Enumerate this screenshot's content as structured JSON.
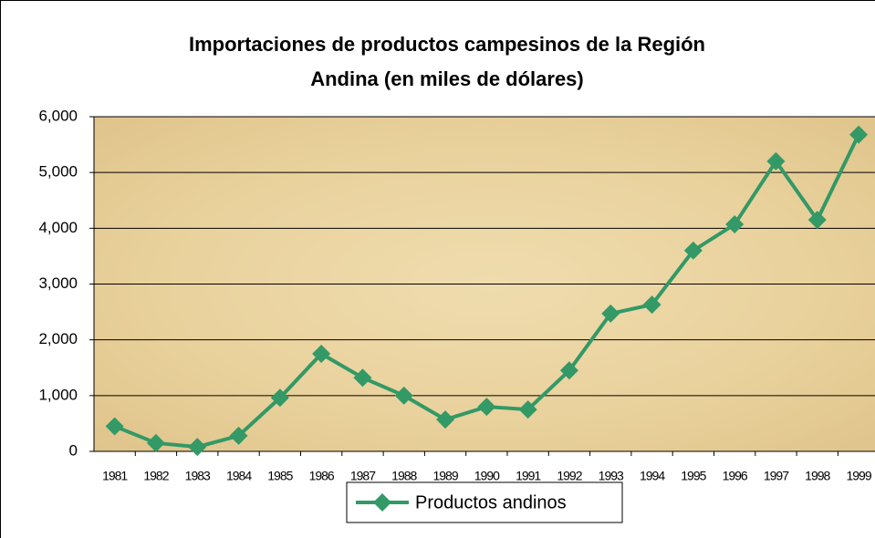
{
  "chart_data": {
    "type": "line",
    "title": [
      "Importaciones de productos campesinos de la Región",
      "Andina  (en miles de dólares)"
    ],
    "categories": [
      "1981",
      "1982",
      "1983",
      "1984",
      "1985",
      "1986",
      "1987",
      "1988",
      "1989",
      "1990",
      "1991",
      "1992",
      "1993",
      "1994",
      "1995",
      "1996",
      "1997",
      "1998",
      "1999"
    ],
    "series": [
      {
        "name": "Productos andinos",
        "color": "#339966",
        "values": [
          450,
          150,
          80,
          280,
          960,
          1750,
          1320,
          1000,
          570,
          800,
          750,
          1450,
          2470,
          2630,
          3600,
          4070,
          5200,
          4150,
          5680
        ]
      }
    ],
    "ylim": [
      0,
      6000
    ],
    "yticks": [
      0,
      {
        "value": 1000,
        "label": "1,000"
      },
      {
        "value": 2000,
        "label": "2,000"
      },
      {
        "value": 3000,
        "label": "3,000"
      },
      {
        "value": 4000,
        "label": "4,000"
      },
      {
        "value": 5000,
        "label": "5,000"
      },
      {
        "value": 6000,
        "label": "6,000"
      }
    ],
    "grid": true,
    "legend": "bottom"
  }
}
